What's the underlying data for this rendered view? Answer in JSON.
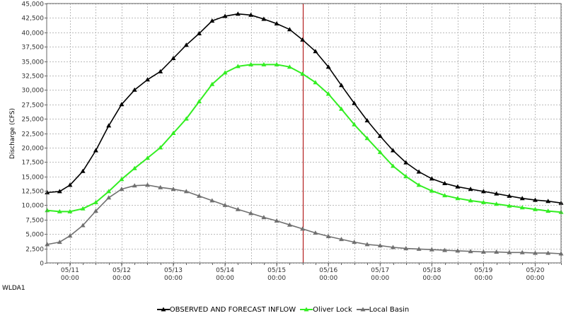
{
  "site_label": "WLDA1",
  "chart_data": {
    "type": "line",
    "ylabel": "Discharge (CFS)",
    "xlabel": "",
    "ylim": [
      0,
      45000
    ],
    "y_ticks": [
      0,
      2500,
      5000,
      7500,
      10000,
      12500,
      15000,
      17500,
      20000,
      22500,
      25000,
      27500,
      30000,
      32500,
      35000,
      37500,
      40000,
      42500,
      45000
    ],
    "y_tick_labels": [
      "0",
      "2,500",
      "5,000",
      "7,500",
      "10,000",
      "12,500",
      "15,000",
      "17,500",
      "20,000",
      "22,500",
      "25,000",
      "27,500",
      "30,000",
      "32,500",
      "35,000",
      "37,500",
      "40,000",
      "42,500",
      "45,000"
    ],
    "xlim_days": [
      10.55,
      20.5
    ],
    "x_ticks": [
      {
        "day": 11,
        "date": "05/11",
        "time": "00:00"
      },
      {
        "day": 12,
        "date": "05/12",
        "time": "00:00"
      },
      {
        "day": 13,
        "date": "05/13",
        "time": "00:00"
      },
      {
        "day": 14,
        "date": "05/14",
        "time": "00:00"
      },
      {
        "day": 15,
        "date": "05/15",
        "time": "00:00"
      },
      {
        "day": 16,
        "date": "05/16",
        "time": "00:00"
      },
      {
        "day": 17,
        "date": "05/17",
        "time": "00:00"
      },
      {
        "day": 18,
        "date": "05/18",
        "time": "00:00"
      },
      {
        "day": 19,
        "date": "05/19",
        "time": "00:00"
      },
      {
        "day": 20,
        "date": "05/20",
        "time": "00:00"
      }
    ],
    "forecast_marker_day": 15.5,
    "grid": true,
    "legend_position": "bottom",
    "series": [
      {
        "name": "OBSERVED AND FORECAST INFLOW",
        "color": "#000000",
        "marker": "triangle",
        "x": [
          10.56,
          10.8,
          11.0,
          11.25,
          11.5,
          11.75,
          12.0,
          12.25,
          12.5,
          12.75,
          13.0,
          13.25,
          13.5,
          13.75,
          14.0,
          14.25,
          14.5,
          14.75,
          15.0,
          15.25,
          15.5,
          15.75,
          16.0,
          16.25,
          16.5,
          16.75,
          17.0,
          17.25,
          17.5,
          17.75,
          18.0,
          18.25,
          18.5,
          18.75,
          19.0,
          19.25,
          19.5,
          19.75,
          20.0,
          20.25,
          20.5
        ],
        "y": [
          12200,
          12400,
          13500,
          15900,
          19500,
          23800,
          27500,
          30000,
          31800,
          33200,
          35500,
          37800,
          39800,
          42000,
          42800,
          43200,
          43000,
          42300,
          41500,
          40500,
          38700,
          36700,
          34000,
          30800,
          27700,
          24700,
          22000,
          19500,
          17400,
          15800,
          14600,
          13800,
          13200,
          12800,
          12400,
          12000,
          11600,
          11200,
          10900,
          10700,
          10400
        ]
      },
      {
        "name": "Oliver Lock",
        "color": "#33ee22",
        "marker": "triangle",
        "x": [
          10.56,
          10.8,
          11.0,
          11.25,
          11.5,
          11.75,
          12.0,
          12.25,
          12.5,
          12.75,
          13.0,
          13.25,
          13.5,
          13.75,
          14.0,
          14.25,
          14.5,
          14.75,
          15.0,
          15.25,
          15.5,
          15.75,
          16.0,
          16.25,
          16.5,
          16.75,
          17.0,
          17.25,
          17.5,
          17.75,
          18.0,
          18.25,
          18.5,
          18.75,
          19.0,
          19.25,
          19.5,
          19.75,
          20.0,
          20.25,
          20.5
        ],
        "y": [
          9100,
          8900,
          8900,
          9400,
          10500,
          12400,
          14500,
          16400,
          18200,
          20000,
          22500,
          25000,
          28000,
          31000,
          33000,
          34100,
          34400,
          34400,
          34400,
          34000,
          32800,
          31300,
          29300,
          26700,
          24000,
          21600,
          19200,
          16800,
          15000,
          13500,
          12500,
          11700,
          11200,
          10800,
          10500,
          10200,
          9900,
          9600,
          9300,
          9000,
          8800
        ]
      },
      {
        "name": "Local Basin",
        "color": "#707070",
        "marker": "triangle",
        "x": [
          10.56,
          10.8,
          11.0,
          11.25,
          11.5,
          11.75,
          12.0,
          12.25,
          12.5,
          12.75,
          13.0,
          13.25,
          13.5,
          13.75,
          14.0,
          14.25,
          14.5,
          14.75,
          15.0,
          15.25,
          15.5,
          15.75,
          16.0,
          16.25,
          16.5,
          16.75,
          17.0,
          17.25,
          17.5,
          17.75,
          18.0,
          18.25,
          18.5,
          18.75,
          19.0,
          19.25,
          19.5,
          19.75,
          20.0,
          20.25,
          20.5
        ],
        "y": [
          3200,
          3600,
          4700,
          6500,
          9000,
          11300,
          12800,
          13400,
          13500,
          13100,
          12800,
          12400,
          11600,
          10800,
          10000,
          9300,
          8600,
          7900,
          7300,
          6600,
          5900,
          5200,
          4600,
          4100,
          3600,
          3200,
          3000,
          2700,
          2500,
          2400,
          2300,
          2200,
          2100,
          2000,
          1900,
          1900,
          1800,
          1800,
          1700,
          1700,
          1600
        ]
      }
    ]
  }
}
